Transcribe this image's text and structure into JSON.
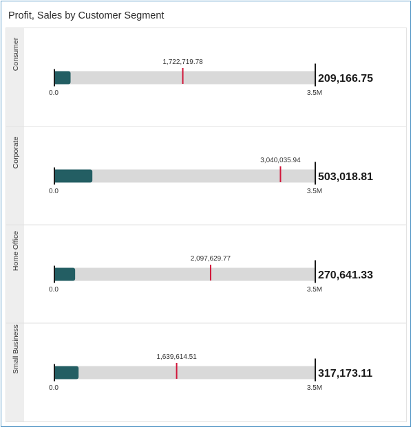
{
  "chart_data": {
    "type": "bullet",
    "title": "Profit, Sales by Customer Segment",
    "measure_name": "Profit",
    "target_name": "Sales",
    "axis_min": 0,
    "axis_max": 3500000,
    "axis_tick_labels": [
      "0.0",
      "3.5M"
    ],
    "colors": {
      "bar": "#235e63",
      "track": "#d9d9d9",
      "target": "#d1163a",
      "axis": "#1a1a1a",
      "gutter": "#eeeeee",
      "divider": "#e2e2e2"
    },
    "segments": [
      {
        "name": "Consumer",
        "value": 209166.75,
        "value_label": "209,166.75",
        "target": 1722719.78,
        "target_label": "1,722,719.78"
      },
      {
        "name": "Corporate",
        "value": 503018.81,
        "value_label": "503,018.81",
        "target": 3040035.94,
        "target_label": "3,040,035.94"
      },
      {
        "name": "Home Office",
        "value": 270641.33,
        "value_label": "270,641.33",
        "target": 2097629.77,
        "target_label": "2,097,629.77"
      },
      {
        "name": "Small Business",
        "value": 317173.11,
        "value_label": "317,173.11",
        "target": 1639614.51,
        "target_label": "1,639,614.51"
      }
    ]
  }
}
